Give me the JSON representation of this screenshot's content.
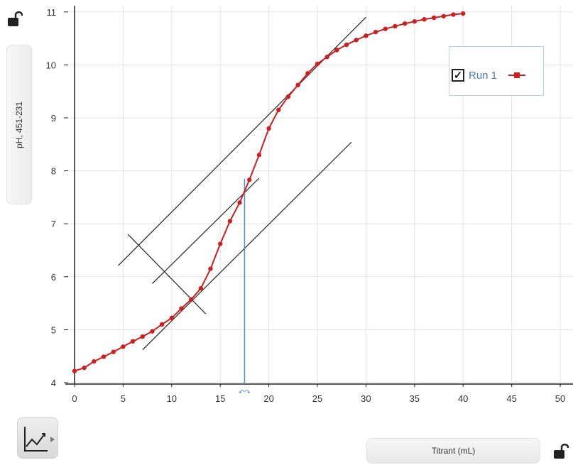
{
  "chart_data": {
    "type": "line",
    "title": "",
    "xlabel": "Titrant (mL)",
    "ylabel": "pH, 451-231",
    "xlim": [
      -1,
      51
    ],
    "ylim": [
      4,
      11
    ],
    "x_ticks": [
      0,
      5,
      10,
      15,
      20,
      25,
      30,
      35,
      40,
      45,
      50
    ],
    "y_ticks": [
      4,
      5,
      6,
      7,
      8,
      9,
      10,
      11
    ],
    "grid": true,
    "legend": {
      "placement": "top-right",
      "checked": true
    },
    "series": [
      {
        "name": "Run 1",
        "color": "#cc1f1f",
        "x": [
          0,
          1,
          2,
          3,
          4,
          5,
          6,
          7,
          8,
          9,
          10,
          11,
          12,
          13,
          14,
          15,
          16,
          17,
          18,
          19,
          20,
          21,
          22,
          23,
          24,
          25,
          26,
          27,
          28,
          29,
          30,
          31,
          32,
          33,
          34,
          35,
          36,
          37,
          38,
          39,
          40
        ],
        "y": [
          4.22,
          4.28,
          4.4,
          4.49,
          4.58,
          4.68,
          4.78,
          4.87,
          4.97,
          5.1,
          5.22,
          5.4,
          5.57,
          5.78,
          6.15,
          6.62,
          7.05,
          7.4,
          7.83,
          8.3,
          8.8,
          9.15,
          9.4,
          9.62,
          9.84,
          10.02,
          10.15,
          10.28,
          10.38,
          10.47,
          10.55,
          10.62,
          10.68,
          10.73,
          10.78,
          10.82,
          10.86,
          10.89,
          10.92,
          10.95,
          10.97
        ]
      }
    ],
    "annotations": [
      {
        "type": "line",
        "x1": 4.5,
        "y1": 6.21,
        "x2": 30,
        "y2": 10.9
      },
      {
        "type": "line",
        "x1": 8,
        "y1": 5.87,
        "x2": 19,
        "y2": 7.86
      },
      {
        "type": "line",
        "x1": 7,
        "y1": 4.62,
        "x2": 28.5,
        "y2": 8.54
      },
      {
        "type": "line",
        "x1": 5.5,
        "y1": 6.8,
        "x2": 13.5,
        "y2": 5.3
      },
      {
        "type": "vline",
        "x": 17.5,
        "y_top": 7.85,
        "color": "#4a90d9"
      }
    ]
  }
}
